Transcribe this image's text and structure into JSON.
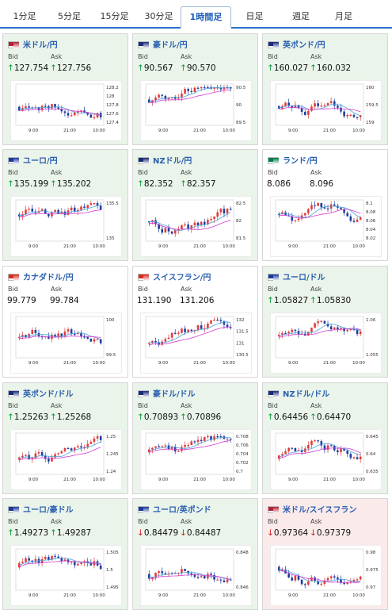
{
  "tabs": [
    "1分足",
    "5分足",
    "15分足",
    "30分足",
    "1時間足",
    "日足",
    "週足",
    "月足"
  ],
  "active_tab": 4,
  "labels": {
    "bid": "Bid",
    "ask": "Ask"
  },
  "colors": {
    "up_bg": "#eaf4ea",
    "down_bg": "#fbeaea",
    "plain_bg": "#ffffff",
    "up_arrow": "#0a9a3a",
    "down_arrow": "#d41c1c",
    "title": "#2a5fb0"
  },
  "panels": [
    {
      "pair": "米ドル/円",
      "flag": "us-jp",
      "bid": "127.754",
      "ask": "127.756",
      "dir": "up",
      "bg": "up",
      "yticks": [
        "128.2",
        "128",
        "127.8",
        "127.6",
        "127.4"
      ],
      "xticks": [
        "9:00",
        "21:00",
        "10:00"
      ]
    },
    {
      "pair": "豪ドル/円",
      "flag": "au-jp",
      "bid": "90.567",
      "ask": "90.570",
      "dir": "up",
      "bg": "up",
      "yticks": [
        "90.5",
        "90",
        "89.5"
      ],
      "xticks": [
        "9:00",
        "21:00",
        "10:00"
      ]
    },
    {
      "pair": "英ポンド/円",
      "flag": "gb-jp",
      "bid": "160.027",
      "ask": "160.032",
      "dir": "up",
      "bg": "up",
      "yticks": [
        "160",
        "159.5",
        "159"
      ],
      "xticks": [
        "9:00",
        "21:00",
        "10:00"
      ]
    },
    {
      "pair": "ユーロ/円",
      "flag": "eu-jp",
      "bid": "135.199",
      "ask": "135.202",
      "dir": "up",
      "bg": "up",
      "yticks": [
        "135.5",
        "135"
      ],
      "xticks": [
        "9:00",
        "21:00",
        "10:00"
      ]
    },
    {
      "pair": "NZドル/円",
      "flag": "nz-jp",
      "bid": "82.352",
      "ask": "82.357",
      "dir": "up",
      "bg": "up",
      "yticks": [
        "82.5",
        "82",
        "81.5"
      ],
      "xticks": [
        "9:00",
        "21:00",
        "10:00"
      ]
    },
    {
      "pair": "ランド/円",
      "flag": "za-jp",
      "bid": "8.086",
      "ask": "8.096",
      "dir": "none",
      "bg": "plain",
      "yticks": [
        "8.1",
        "8.08",
        "8.06",
        "8.04",
        "8.02"
      ],
      "xticks": [
        "9:00",
        "21:00",
        "10:00"
      ]
    },
    {
      "pair": "カナダドル/円",
      "flag": "ca-jp",
      "bid": "99.779",
      "ask": "99.784",
      "dir": "none",
      "bg": "plain",
      "yticks": [
        "100",
        "99.5"
      ],
      "xticks": [
        "9:00",
        "21:00",
        "10:00"
      ]
    },
    {
      "pair": "スイスフラン/円",
      "flag": "ch-jp",
      "bid": "131.190",
      "ask": "131.206",
      "dir": "none",
      "bg": "plain",
      "yticks": [
        "132",
        "131.5",
        "131",
        "130.5"
      ],
      "xticks": [
        "9:00",
        "21:00",
        "10:00"
      ]
    },
    {
      "pair": "ユーロ/ドル",
      "flag": "eu-us",
      "bid": "1.05827",
      "ask": "1.05830",
      "dir": "up",
      "bg": "up",
      "yticks": [
        "1.06",
        "1.055"
      ],
      "xticks": [
        "9:00",
        "21:00",
        "10:00"
      ]
    },
    {
      "pair": "英ポンド/ドル",
      "flag": "gb-us",
      "bid": "1.25263",
      "ask": "1.25268",
      "dir": "up",
      "bg": "up",
      "yticks": [
        "1.25",
        "1.245",
        "1.24"
      ],
      "xticks": [
        "9:00",
        "21:00",
        "10:00"
      ]
    },
    {
      "pair": "豪ドル/ドル",
      "flag": "au-us",
      "bid": "0.70893",
      "ask": "0.70896",
      "dir": "up",
      "bg": "up",
      "yticks": [
        "0.708",
        "0.706",
        "0.704",
        "0.702",
        "0.7"
      ],
      "xticks": [
        "9:00",
        "21:00",
        "10:00"
      ]
    },
    {
      "pair": "NZドル/ドル",
      "flag": "nz-us",
      "bid": "0.64456",
      "ask": "0.64470",
      "dir": "up",
      "bg": "up",
      "yticks": [
        "0.645",
        "0.64",
        "0.635"
      ],
      "xticks": [
        "9:00",
        "21:00",
        "10:00"
      ]
    },
    {
      "pair": "ユーロ/豪ドル",
      "flag": "eu-au",
      "bid": "1.49273",
      "ask": "1.49287",
      "dir": "up",
      "bg": "up",
      "yticks": [
        "1.505",
        "1.5",
        "1.495"
      ],
      "xticks": [
        "9:00",
        "21:00",
        "10:00"
      ]
    },
    {
      "pair": "ユーロ/英ポンド",
      "flag": "eu-gb",
      "bid": "0.84479",
      "ask": "0.84487",
      "dir": "down",
      "bg": "up",
      "yticks": [
        "0.848",
        "0.846"
      ],
      "xticks": [
        "9:00",
        "21:00",
        "10:00"
      ]
    },
    {
      "pair": "米ドル/スイスフラン",
      "flag": "us-ch",
      "bid": "0.97364",
      "ask": "0.97379",
      "dir": "down",
      "bg": "down",
      "yticks": [
        "0.98",
        "0.975",
        "0.97"
      ],
      "xticks": [
        "9:00",
        "21:00",
        "10:00"
      ]
    }
  ]
}
